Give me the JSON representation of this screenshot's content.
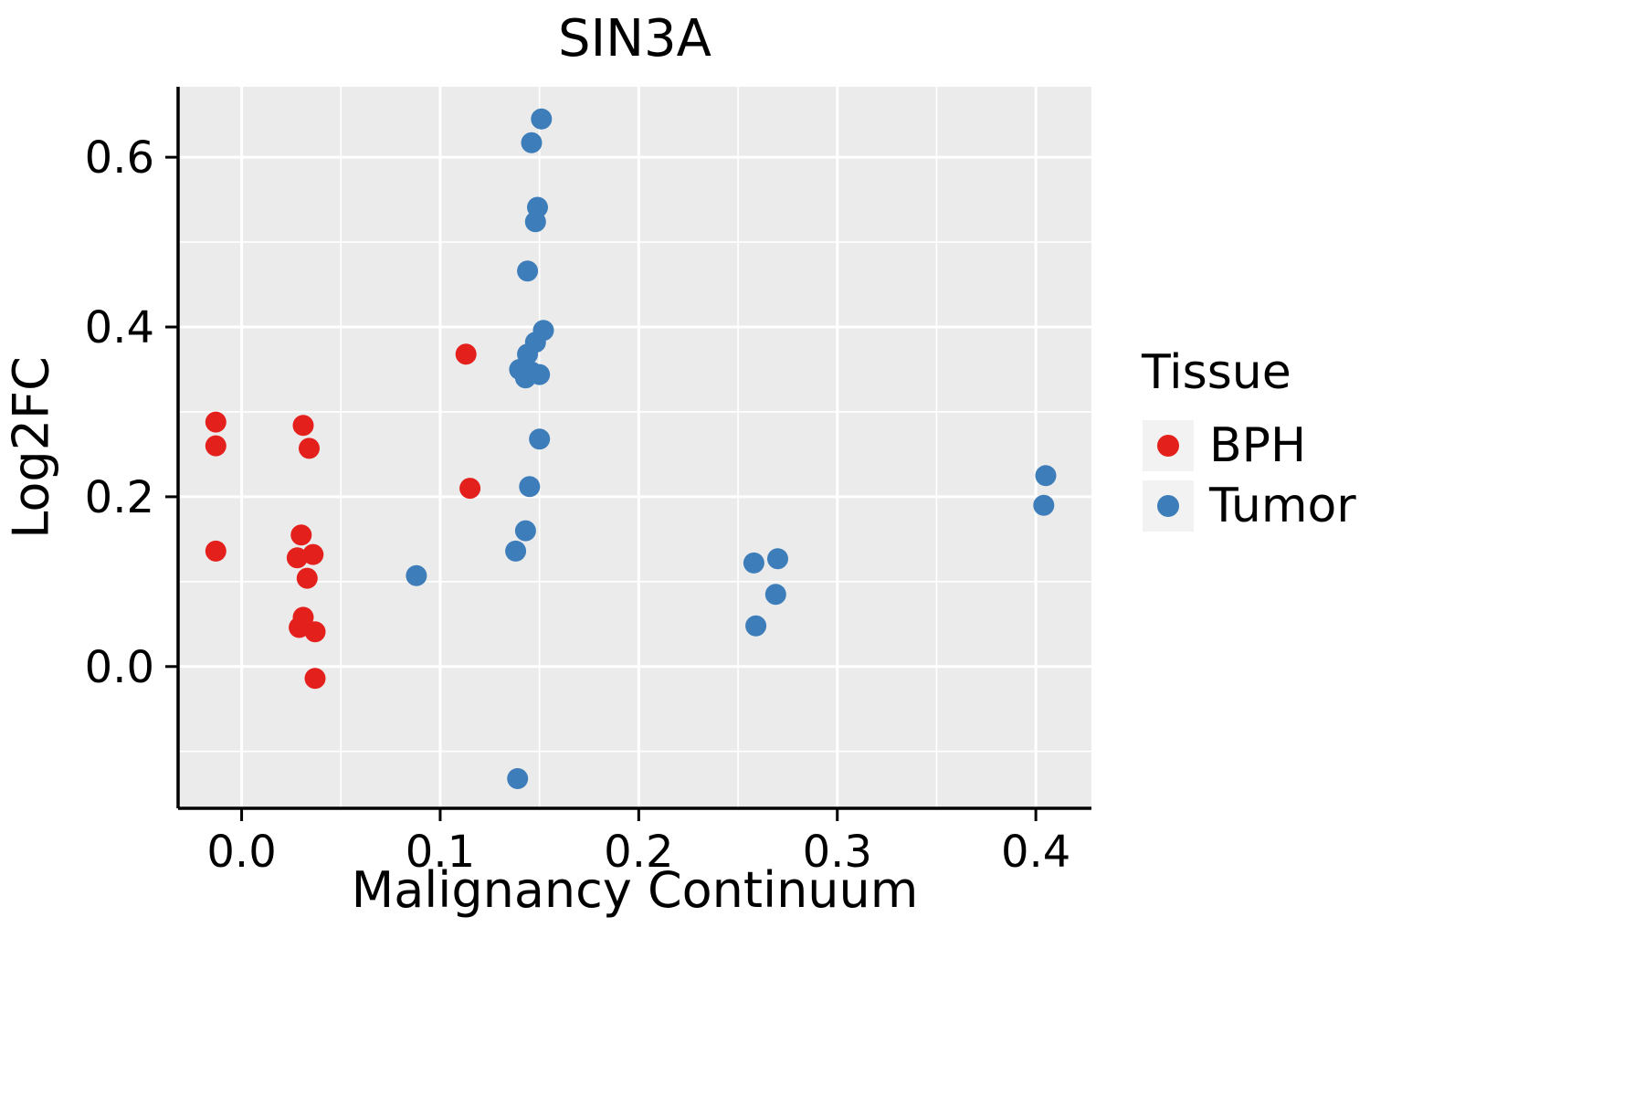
{
  "chart_data": {
    "type": "scatter",
    "title": "SIN3A",
    "xlabel": "Malignancy Continuum",
    "ylabel": "Log2FC",
    "xlim": [
      -0.032,
      0.428
    ],
    "ylim": [
      -0.167,
      0.683
    ],
    "x_ticks": [
      0.0,
      0.1,
      0.2,
      0.3,
      0.4
    ],
    "x_tick_labels": [
      "0.0",
      "0.1",
      "0.2",
      "0.3",
      "0.4"
    ],
    "y_ticks": [
      0.0,
      0.2,
      0.4,
      0.6
    ],
    "y_tick_labels": [
      "0.0",
      "0.2",
      "0.4",
      "0.6"
    ],
    "x_minor_ticks": [
      0.05,
      0.15,
      0.25,
      0.35
    ],
    "y_minor_ticks": [
      -0.1,
      0.1,
      0.3,
      0.5
    ],
    "grid": true,
    "colors": {
      "panel_bg": "#EBEBEB",
      "grid": "#FFFFFF",
      "axis": "#000000",
      "legend_key_bg": "#F2F2F2"
    },
    "legend": {
      "title": "Tissue",
      "position": "right",
      "entries": [
        {
          "label": "BPH",
          "color": "#E4201C"
        },
        {
          "label": "Tumor",
          "color": "#3D7DBA"
        }
      ]
    },
    "series": [
      {
        "name": "BPH",
        "color": "#E4201C",
        "points": [
          [
            -0.013,
            0.288
          ],
          [
            -0.013,
            0.26
          ],
          [
            -0.013,
            0.136
          ],
          [
            0.031,
            0.284
          ],
          [
            0.034,
            0.257
          ],
          [
            0.03,
            0.155
          ],
          [
            0.028,
            0.128
          ],
          [
            0.036,
            0.132
          ],
          [
            0.033,
            0.104
          ],
          [
            0.031,
            0.058
          ],
          [
            0.029,
            0.046
          ],
          [
            0.037,
            0.041
          ],
          [
            0.037,
            -0.014
          ],
          [
            0.113,
            0.368
          ],
          [
            0.115,
            0.21
          ]
        ]
      },
      {
        "name": "Tumor",
        "color": "#3D7DBA",
        "points": [
          [
            0.151,
            0.645
          ],
          [
            0.146,
            0.617
          ],
          [
            0.149,
            0.541
          ],
          [
            0.148,
            0.524
          ],
          [
            0.144,
            0.466
          ],
          [
            0.152,
            0.396
          ],
          [
            0.148,
            0.382
          ],
          [
            0.144,
            0.368
          ],
          [
            0.14,
            0.35
          ],
          [
            0.146,
            0.347
          ],
          [
            0.15,
            0.344
          ],
          [
            0.143,
            0.34
          ],
          [
            0.15,
            0.268
          ],
          [
            0.145,
            0.212
          ],
          [
            0.143,
            0.16
          ],
          [
            0.138,
            0.136
          ],
          [
            0.088,
            0.107
          ],
          [
            0.139,
            -0.132
          ],
          [
            0.258,
            0.122
          ],
          [
            0.27,
            0.127
          ],
          [
            0.269,
            0.085
          ],
          [
            0.259,
            0.048
          ],
          [
            0.405,
            0.225
          ],
          [
            0.404,
            0.19
          ]
        ]
      }
    ]
  }
}
